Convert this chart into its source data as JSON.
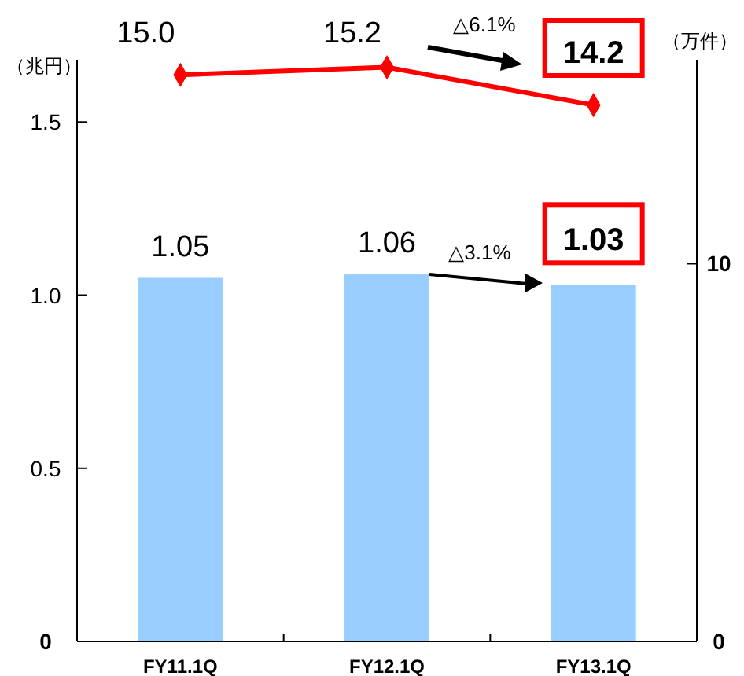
{
  "chart_data": {
    "type": "bar",
    "categories": [
      "FY11.1Q",
      "FY12.1Q",
      "FY13.1Q"
    ],
    "ylabel": "（兆円）",
    "y2label": "（万件）",
    "series": [
      {
        "color": "#99ccff",
        "values": [
          1.05,
          1.06,
          1.03
        ],
        "value_labels": [
          "1.05",
          "1.06",
          "1.03"
        ]
      },
      {
        "type": "line",
        "axis": "y2",
        "color": "#ff0000",
        "values": [
          15.0,
          15.2,
          14.2
        ],
        "value_labels": [
          "15.0",
          "15.2",
          "14.2"
        ]
      }
    ],
    "ylim": [
      0,
      1.68
    ],
    "yticks": [
      0,
      0.5,
      {
        "value": 1,
        "label": "1.0"
      },
      1.5
    ],
    "y2lim": [
      0,
      15.4
    ],
    "y2ticks": [
      0,
      10
    ],
    "marker": "diamond",
    "grid": false,
    "legend": false,
    "annotations": [
      "△6.1%",
      "△3.1%"
    ]
  }
}
